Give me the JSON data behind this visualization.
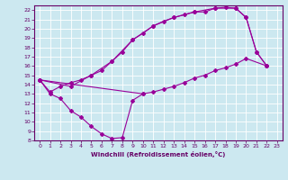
{
  "xlabel": "Windchill (Refroidissement éolien,°C)",
  "bg_color": "#cce8f0",
  "line_color": "#990099",
  "xlim": [
    -0.5,
    23.5
  ],
  "ylim": [
    8,
    22.5
  ],
  "xticks": [
    0,
    1,
    2,
    3,
    4,
    5,
    6,
    7,
    8,
    9,
    10,
    11,
    12,
    13,
    14,
    15,
    16,
    17,
    18,
    19,
    20,
    21,
    22,
    23
  ],
  "yticks": [
    8,
    9,
    10,
    11,
    12,
    13,
    14,
    15,
    16,
    17,
    18,
    19,
    20,
    21,
    22
  ],
  "series1": [
    [
      0,
      14.5
    ],
    [
      1,
      13.0
    ],
    [
      2,
      12.5
    ],
    [
      3,
      11.2
    ],
    [
      4,
      10.5
    ],
    [
      5,
      9.5
    ],
    [
      6,
      8.7
    ],
    [
      7,
      8.2
    ],
    [
      8,
      8.3
    ],
    [
      9,
      12.3
    ],
    [
      10,
      13.0
    ]
  ],
  "series2": [
    [
      0,
      14.5
    ],
    [
      1,
      13.2
    ],
    [
      2,
      13.8
    ],
    [
      3,
      14.2
    ],
    [
      4,
      14.5
    ],
    [
      5,
      15.0
    ],
    [
      6,
      15.5
    ],
    [
      7,
      16.5
    ],
    [
      8,
      17.5
    ],
    [
      9,
      18.8
    ],
    [
      10,
      19.5
    ],
    [
      11,
      20.3
    ],
    [
      12,
      20.8
    ],
    [
      13,
      21.2
    ],
    [
      14,
      21.5
    ],
    [
      15,
      21.8
    ],
    [
      16,
      21.8
    ],
    [
      17,
      22.2
    ],
    [
      18,
      22.3
    ],
    [
      19,
      22.2
    ],
    [
      20,
      21.2
    ],
    [
      21,
      17.5
    ],
    [
      22,
      16.0
    ]
  ],
  "series3": [
    [
      0,
      14.5
    ],
    [
      10,
      13.0
    ],
    [
      11,
      13.2
    ],
    [
      12,
      13.5
    ],
    [
      13,
      13.8
    ],
    [
      14,
      14.2
    ],
    [
      15,
      14.7
    ],
    [
      16,
      15.0
    ],
    [
      17,
      15.5
    ],
    [
      18,
      15.8
    ],
    [
      19,
      16.2
    ],
    [
      20,
      16.8
    ],
    [
      22,
      16.0
    ]
  ],
  "series4": [
    [
      0,
      14.5
    ],
    [
      3,
      13.8
    ],
    [
      5,
      15.0
    ],
    [
      7,
      16.5
    ],
    [
      9,
      18.8
    ],
    [
      11,
      20.3
    ],
    [
      13,
      21.2
    ],
    [
      15,
      21.8
    ],
    [
      17,
      22.2
    ],
    [
      19,
      22.2
    ],
    [
      20,
      21.2
    ],
    [
      21,
      17.5
    ],
    [
      22,
      16.0
    ]
  ]
}
